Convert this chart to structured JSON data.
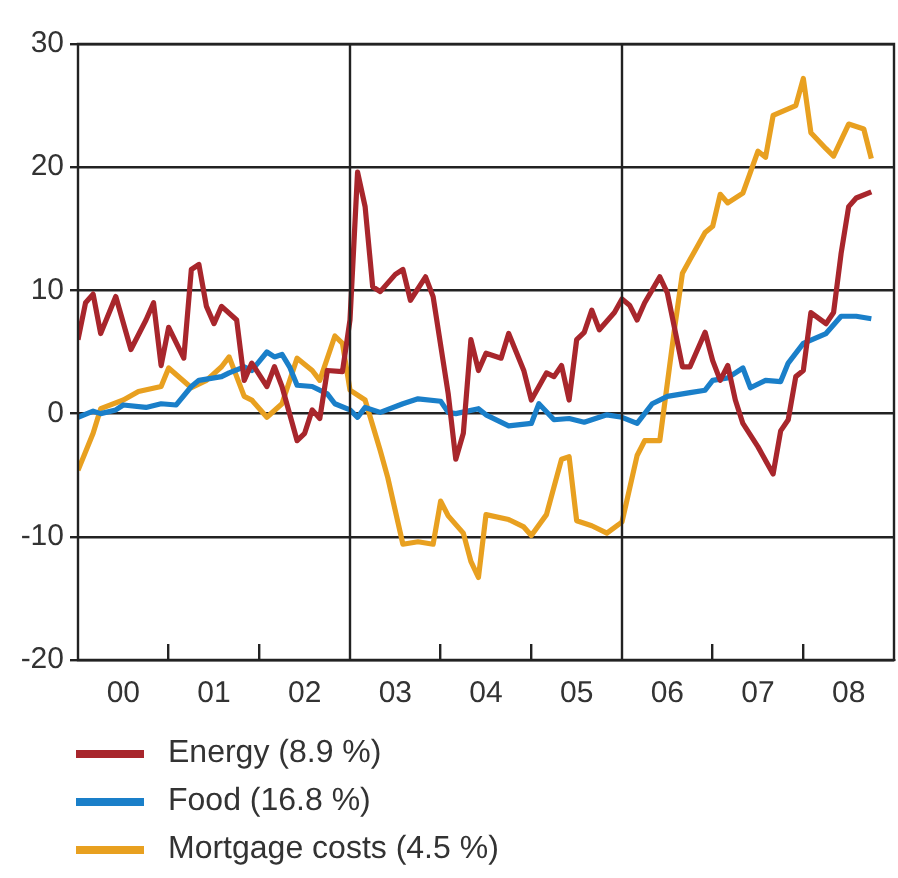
{
  "chart_data": {
    "type": "line",
    "xlim": [
      "2000",
      "2009"
    ],
    "ylim": [
      -20,
      30
    ],
    "yticks": [
      -20,
      -10,
      0,
      10,
      20,
      30
    ],
    "xticks": [
      {
        "value": "2000-07",
        "label": "00"
      },
      {
        "value": "2001",
        "label": null
      },
      {
        "value": "2001-07",
        "label": "01"
      },
      {
        "value": "2002",
        "label": null
      },
      {
        "value": "2002-07",
        "label": "02"
      },
      {
        "value": "2003-07",
        "label": "03"
      },
      {
        "value": "2004",
        "label": null
      },
      {
        "value": "2004-07",
        "label": "04"
      },
      {
        "value": "2005",
        "label": null
      },
      {
        "value": "2005-07",
        "label": "05"
      },
      {
        "value": "2006-07",
        "label": "06"
      },
      {
        "value": "2007",
        "label": null
      },
      {
        "value": "2007-07",
        "label": "07"
      },
      {
        "value": "2008",
        "label": null
      },
      {
        "value": "2008-07",
        "label": "08"
      }
    ],
    "grid": "y",
    "legend": "bottom",
    "marker": "none",
    "line_style": "solid",
    "ref_lines": [
      {
        "axis": "x",
        "value": "2003",
        "color": "#222222"
      },
      {
        "axis": "x",
        "value": "2006",
        "color": "#222222"
      }
    ],
    "series": [
      {
        "name": "Energy (8.9 %)",
        "color": "#a8262c",
        "x": [
          "2000-01",
          "2000-02",
          "2000-03",
          "2000-04",
          "2000-06",
          "2000-08",
          "2000-10",
          "2000-11",
          "2000-12",
          "2001-01",
          "2001-03",
          "2001-04",
          "2001-05",
          "2001-06",
          "2001-07",
          "2001-08",
          "2001-10",
          "2001-11",
          "2001-12",
          "2002-02",
          "2002-03",
          "2002-04",
          "2002-06",
          "2002-07",
          "2002-08",
          "2002-09",
          "2002-10",
          "2002-12",
          "2003-01",
          "2003-02",
          "2003-03",
          "2003-04",
          "2003-05",
          "2003-07",
          "2003-08",
          "2003-09",
          "2003-11",
          "2003-12",
          "2004-02",
          "2004-03",
          "2004-04",
          "2004-05",
          "2004-06",
          "2004-07",
          "2004-09",
          "2004-10",
          "2004-12",
          "2005-01",
          "2005-03",
          "2005-04",
          "2005-05",
          "2005-06",
          "2005-07",
          "2005-08",
          "2005-09",
          "2005-10",
          "2005-12",
          "2006-01",
          "2006-02",
          "2006-03",
          "2006-04",
          "2006-06",
          "2006-07",
          "2006-08",
          "2006-09",
          "2006-10",
          "2006-12",
          "2007-01",
          "2007-02",
          "2007-03",
          "2007-04",
          "2007-05",
          "2007-07",
          "2007-09",
          "2007-10",
          "2007-11",
          "2007-12",
          "2008-01",
          "2008-02",
          "2008-04",
          "2008-05",
          "2008-06",
          "2008-07",
          "2008-08",
          "2008-10"
        ],
        "values": [
          6.0,
          9.0,
          9.7,
          6.5,
          9.5,
          5.2,
          7.6,
          9.0,
          3.9,
          7.0,
          4.5,
          11.7,
          12.1,
          8.7,
          7.3,
          8.7,
          7.6,
          2.7,
          4.1,
          2.2,
          3.8,
          2.2,
          -2.2,
          -1.6,
          0.3,
          -0.4,
          3.5,
          3.4,
          7.6,
          19.6,
          16.8,
          10.3,
          9.9,
          11.3,
          11.7,
          9.2,
          11.1,
          9.5,
          1.6,
          -3.7,
          -1.6,
          6.0,
          3.5,
          4.9,
          4.5,
          6.5,
          3.5,
          1.1,
          3.3,
          3.0,
          3.9,
          1.1,
          6.0,
          6.6,
          8.4,
          6.8,
          8.2,
          9.3,
          8.8,
          7.6,
          9.0,
          11.1,
          9.8,
          6.8,
          3.8,
          3.8,
          6.6,
          4.3,
          2.7,
          3.9,
          1.1,
          -0.8,
          -2.7,
          -4.9,
          -1.4,
          -0.5,
          3.0,
          3.5,
          8.2,
          7.3,
          8.2,
          13.0,
          16.8,
          17.5,
          18.0
        ]
      },
      {
        "name": "Food (16.8 %)",
        "color": "#1a7fc9",
        "x": [
          "2000-01",
          "2000-03",
          "2000-04",
          "2000-06",
          "2000-07",
          "2000-10",
          "2000-12",
          "2001-02",
          "2001-04",
          "2001-05",
          "2001-08",
          "2001-09",
          "2001-11",
          "2001-12",
          "2002-02",
          "2002-03",
          "2002-04",
          "2002-05",
          "2002-06",
          "2002-08",
          "2002-10",
          "2002-11",
          "2003-01",
          "2003-02",
          "2003-03",
          "2003-05",
          "2003-08",
          "2003-10",
          "2004-01",
          "2004-02",
          "2004-03",
          "2004-06",
          "2004-07",
          "2004-10",
          "2005-01",
          "2005-02",
          "2005-04",
          "2005-06",
          "2005-08",
          "2005-11",
          "2006-01",
          "2006-03",
          "2006-05",
          "2006-07",
          "2006-10",
          "2006-12",
          "2007-01",
          "2007-03",
          "2007-05",
          "2007-06",
          "2007-08",
          "2007-10",
          "2007-11",
          "2008-01",
          "2008-04",
          "2008-06",
          "2008-08",
          "2008-10"
        ],
        "values": [
          -0.3,
          0.2,
          0,
          0.3,
          0.7,
          0.5,
          0.8,
          0.7,
          2.2,
          2.7,
          3.0,
          3.3,
          3.8,
          3.5,
          5.0,
          4.6,
          4.8,
          3.8,
          2.3,
          2.2,
          1.6,
          0.8,
          0.3,
          -0.3,
          0.5,
          0.1,
          0.8,
          1.2,
          1.0,
          0.1,
          0,
          0.4,
          -0.1,
          -1.0,
          -0.8,
          0.8,
          -0.5,
          -0.4,
          -0.7,
          -0.1,
          -0.3,
          -0.8,
          0.8,
          1.4,
          1.7,
          1.9,
          2.7,
          2.9,
          3.7,
          2.1,
          2.7,
          2.6,
          4.1,
          5.7,
          6.5,
          7.9,
          7.9,
          7.7
        ]
      },
      {
        "name": "Mortgage costs (4.5 %)",
        "color": "#e8a020",
        "x": [
          "2000-01",
          "2000-03",
          "2000-04",
          "2000-07",
          "2000-09",
          "2000-12",
          "2001-01",
          "2001-04",
          "2001-06",
          "2001-08",
          "2001-09",
          "2001-11",
          "2001-12",
          "2002-02",
          "2002-04",
          "2002-06",
          "2002-08",
          "2002-09",
          "2002-11",
          "2002-12",
          "2003-01",
          "2003-03",
          "2003-05",
          "2003-06",
          "2003-08",
          "2003-10",
          "2003-12",
          "2004-01",
          "2004-02",
          "2004-04",
          "2004-05",
          "2004-06",
          "2004-07",
          "2004-10",
          "2004-12",
          "2005-01",
          "2005-03",
          "2005-05",
          "2005-06",
          "2005-07",
          "2005-09",
          "2005-11",
          "2006-01",
          "2006-03",
          "2006-04",
          "2006-06",
          "2006-08",
          "2006-09",
          "2006-10",
          "2006-12",
          "2007-01",
          "2007-02",
          "2007-03",
          "2007-05",
          "2007-06",
          "2007-07",
          "2007-08",
          "2007-09",
          "2007-12",
          "2008-01",
          "2008-02",
          "2008-04",
          "2008-05",
          "2008-07",
          "2008-09",
          "2008-10"
        ],
        "values": [
          -4.6,
          -1.6,
          0.4,
          1.1,
          1.8,
          2.2,
          3.7,
          2.1,
          2.7,
          3.8,
          4.6,
          1.4,
          1.1,
          -0.3,
          0.8,
          4.5,
          3.5,
          2.7,
          6.3,
          5.7,
          1.9,
          1.1,
          -3.0,
          -5.2,
          -10.6,
          -10.4,
          -10.6,
          -7.1,
          -8.3,
          -9.7,
          -12.0,
          -13.3,
          -8.2,
          -8.6,
          -9.2,
          -9.9,
          -8.2,
          -3.7,
          -3.5,
          -8.7,
          -9.1,
          -9.7,
          -8.8,
          -3.4,
          -2.2,
          -2.2,
          7.1,
          11.4,
          12.5,
          14.7,
          15.2,
          17.8,
          17.1,
          17.9,
          19.6,
          21.3,
          20.8,
          24.2,
          25.0,
          27.2,
          22.8,
          21.5,
          20.9,
          23.5,
          23.1,
          20.7
        ]
      }
    ]
  }
}
